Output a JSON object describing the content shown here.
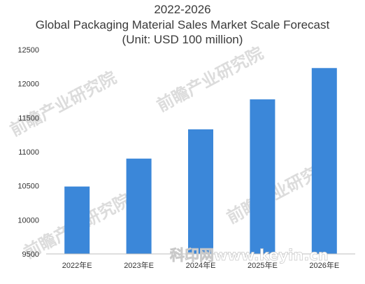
{
  "chart_data": {
    "type": "bar",
    "title_lines": [
      "2022-2026",
      "Global Packaging Material Sales Market Scale Forecast",
      "(Unit: USD 100 million)"
    ],
    "xlabel": "",
    "ylabel": "",
    "categories": [
      "2022年E",
      "2023年E",
      "2024年E",
      "2025年E",
      "2026年E"
    ],
    "values": [
      10490,
      10900,
      11330,
      11770,
      12230
    ],
    "ylim": [
      9500,
      12500
    ],
    "yticks": [
      9500,
      10000,
      10500,
      11000,
      11500,
      12000,
      12500
    ],
    "bar_color": "#3b87d9",
    "grid": false,
    "legend": "none"
  },
  "watermarks": {
    "brand_text": "前瞻产业研究院",
    "site_text": "科印网www.keyin.cn"
  }
}
